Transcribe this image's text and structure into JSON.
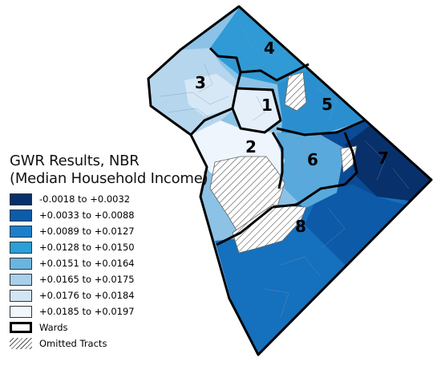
{
  "map": {
    "wards": [
      {
        "label": "1"
      },
      {
        "label": "2"
      },
      {
        "label": "3"
      },
      {
        "label": "4"
      },
      {
        "label": "5"
      },
      {
        "label": "6"
      },
      {
        "label": "7"
      },
      {
        "label": "8"
      }
    ]
  },
  "legend": {
    "title_line1": "GWR Results, NBR",
    "title_line2": "(Median Household Income)",
    "classes": [
      {
        "label": "-0.0018 to +0.0032",
        "color": "#08306b"
      },
      {
        "label": "+0.0033 to +0.0088",
        "color": "#0b5cab"
      },
      {
        "label": "+0.0089 to +0.0127",
        "color": "#1a7fcc"
      },
      {
        "label": "+0.0128 to +0.0150",
        "color": "#2b9fd8"
      },
      {
        "label": "+0.0151 to +0.0164",
        "color": "#69b5df"
      },
      {
        "label": "+0.0165 to +0.0175",
        "color": "#a9cfeb"
      },
      {
        "label": "+0.0176 to +0.0184",
        "color": "#d3e5f4"
      },
      {
        "label": "+0.0185 to +0.0197",
        "color": "#f2f7fc"
      }
    ],
    "wards_label": "Wards",
    "omitted_label": "Omitted Tracts"
  }
}
